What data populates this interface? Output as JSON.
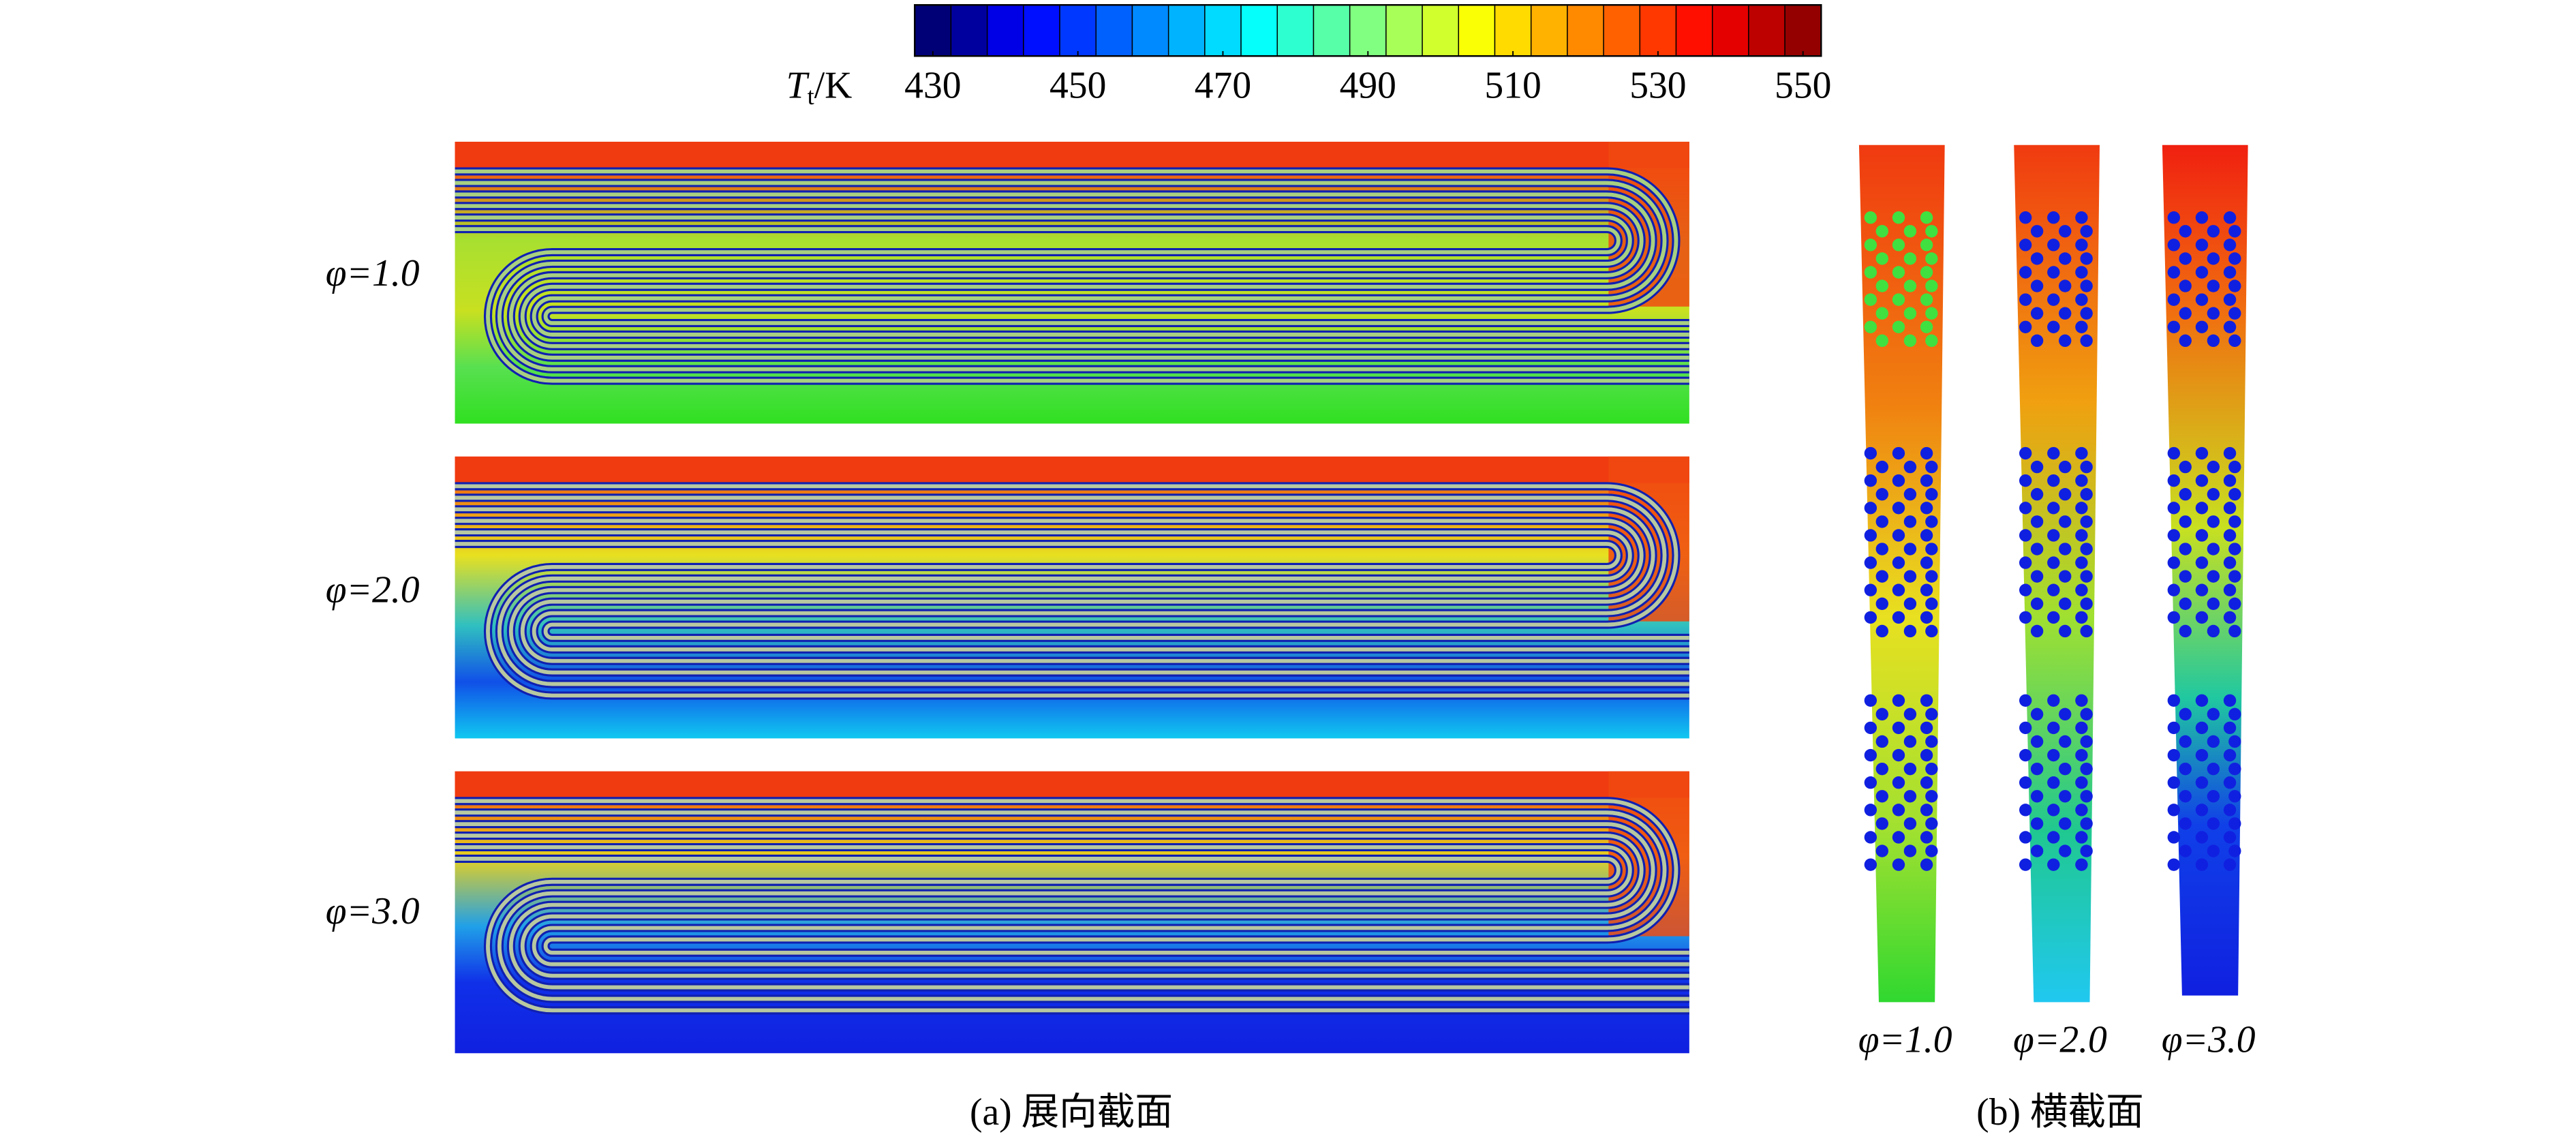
{
  "colorbar": {
    "label": {
      "symbol": "T",
      "subscript": "t",
      "unit": "/K"
    },
    "range": [
      427.5,
      552.5
    ],
    "ticks": [
      430,
      450,
      470,
      490,
      510,
      530,
      550
    ]
  },
  "panel_a": {
    "caption": "(a) 展向截面",
    "labels": [
      "φ=1.0",
      "φ=2.0",
      "φ=3.0"
    ]
  },
  "panel_b": {
    "caption": "(b) 横截面",
    "labels": [
      "φ=1.0",
      "φ=2.0",
      "φ=3.0"
    ]
  }
}
